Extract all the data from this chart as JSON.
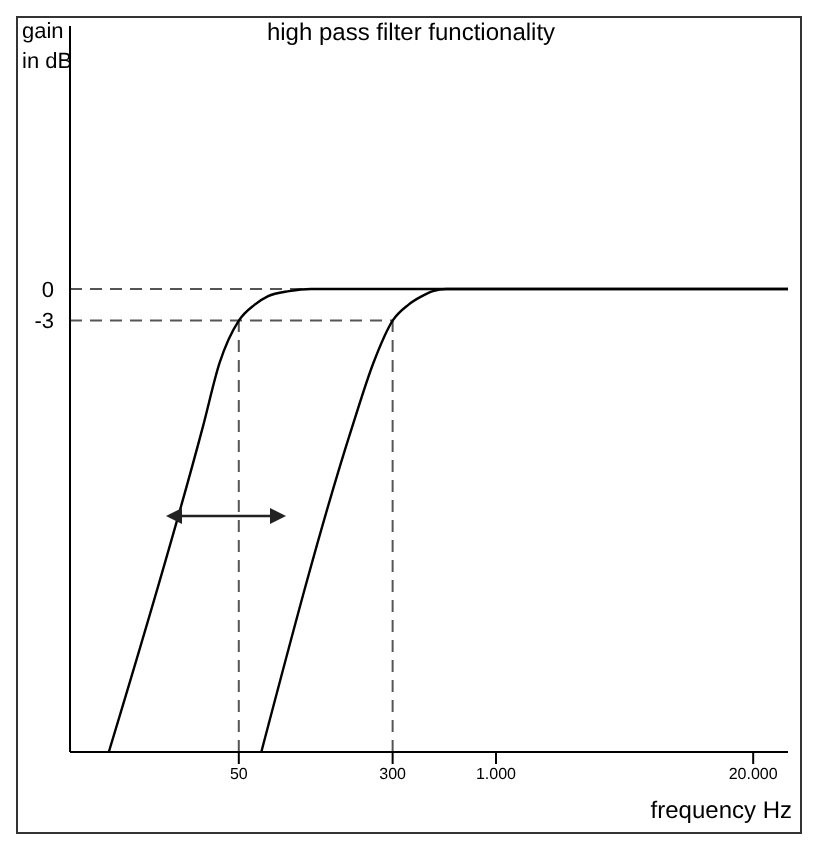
{
  "chart_data": {
    "type": "line",
    "title": "high pass filter functionality",
    "xlabel": "frequency Hz",
    "ylabel": "gain in dB",
    "log": "x",
    "xlim": [
      7,
      30000
    ],
    "ylim": [
      -44,
      25
    ],
    "xticks": [
      50,
      300,
      {
        "value": 1000,
        "label": "1.000"
      },
      {
        "value": 20000,
        "label": "20.000"
      }
    ],
    "yticks": [
      0,
      -3
    ],
    "grid": false,
    "legend": false,
    "marker": "none",
    "line_style": "solid",
    "series": [
      {
        "color": "#000000",
        "x": [
          11,
          33,
          40,
          50,
          60,
          70,
          90,
          116,
          30000
        ],
        "values": [
          -44,
          -13,
          -7,
          -3,
          -1.5,
          -0.7,
          -0.2,
          0,
          0
        ]
      },
      {
        "color": "#000000",
        "x": [
          65,
          188,
          240,
          300,
          360,
          420,
          480,
          560,
          30000
        ],
        "values": [
          -44,
          -13,
          -7,
          -3,
          -1.5,
          -0.7,
          -0.2,
          0,
          0
        ]
      }
    ],
    "ref_lines": [
      {
        "axis": "y",
        "value": 0,
        "color": "#555555",
        "line_style": "dashed"
      },
      {
        "axis": "y",
        "value": -3,
        "color": "#555555",
        "line_style": "dashed"
      },
      {
        "axis": "x",
        "value": 50,
        "color": "#555555",
        "line_style": "dashed"
      },
      {
        "axis": "x",
        "value": 300,
        "color": "#555555",
        "line_style": "dashed"
      }
    ]
  }
}
